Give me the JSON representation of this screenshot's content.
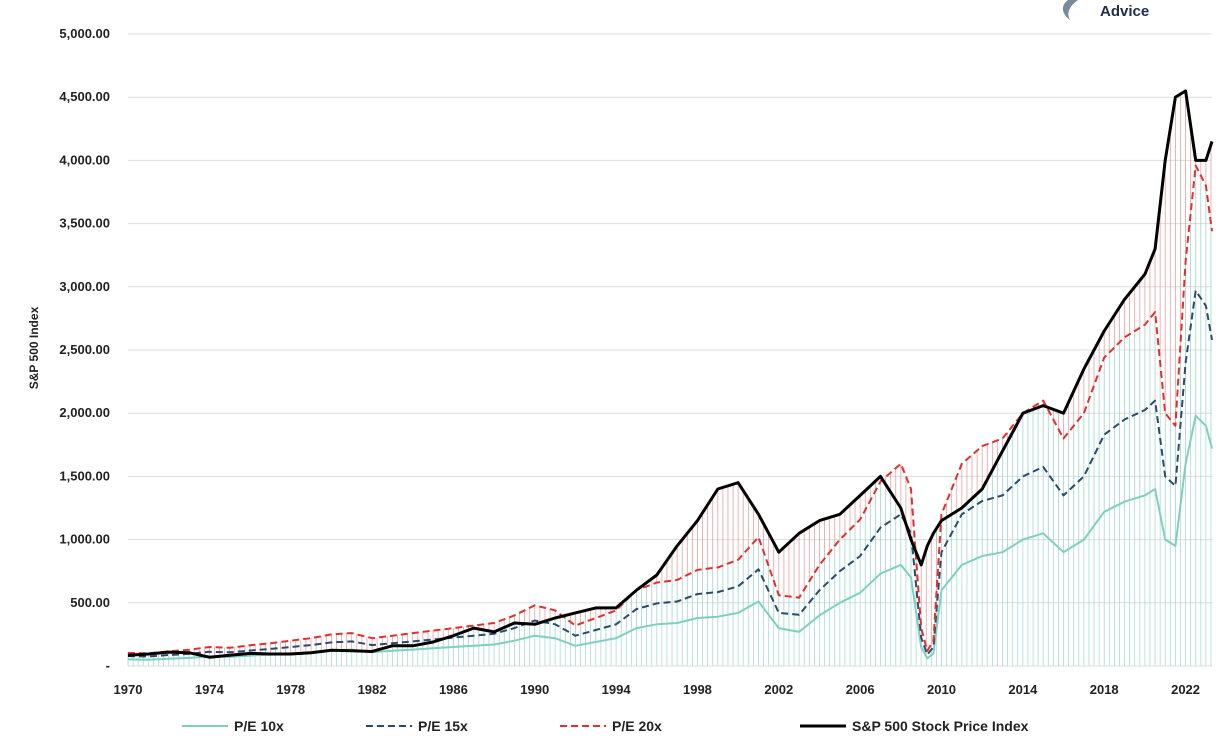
{
  "logo": {
    "text": "Advice"
  },
  "chart_data": {
    "type": "line",
    "title": "",
    "xlabel": "",
    "ylabel": "S&P 500 Index",
    "xlim": [
      1970,
      2023.3
    ],
    "ylim": [
      0,
      5000
    ],
    "y_ticks": [
      0,
      500,
      1000,
      1500,
      2000,
      2500,
      3000,
      3500,
      4000,
      4500,
      5000
    ],
    "y_tick_labels": [
      "-",
      "500.00",
      "1,000.00",
      "1,500.00",
      "2,000.00",
      "2,500.00",
      "3,000.00",
      "3,500.00",
      "4,000.00",
      "4,500.00",
      "5,000.00"
    ],
    "x_ticks": [
      1970,
      1974,
      1978,
      1982,
      1986,
      1990,
      1994,
      1998,
      2002,
      2006,
      2010,
      2014,
      2018,
      2022
    ],
    "x_tick_labels": [
      "1970",
      "1974",
      "1978",
      "1982",
      "1986",
      "1990",
      "1994",
      "1998",
      "2002",
      "2006",
      "2010",
      "2014",
      "2018",
      "2022"
    ],
    "grid": true,
    "legend_position": "bottom",
    "x": [
      1970,
      1971,
      1972,
      1973,
      1974,
      1975,
      1976,
      1977,
      1978,
      1979,
      1980,
      1981,
      1982,
      1983,
      1984,
      1985,
      1986,
      1987,
      1988,
      1989,
      1990,
      1991,
      1992,
      1993,
      1994,
      1995,
      1996,
      1997,
      1998,
      1999,
      2000,
      2001,
      2002,
      2003,
      2004,
      2005,
      2006,
      2007,
      2008,
      2008.5,
      2009,
      2009.3,
      2009.6,
      2010,
      2011,
      2012,
      2013,
      2014,
      2015,
      2016,
      2017,
      2018,
      2019,
      2020,
      2020.5,
      2021,
      2021.5,
      2022,
      2022.5,
      2023,
      2023.3
    ],
    "series": [
      {
        "name": "P/E 10x",
        "color": "#7fcfc1",
        "dash": "",
        "width": 2,
        "values": [
          52,
          50,
          58,
          64,
          75,
          72,
          82,
          90,
          100,
          110,
          125,
          130,
          110,
          120,
          130,
          140,
          150,
          160,
          170,
          200,
          240,
          220,
          160,
          190,
          220,
          300,
          330,
          340,
          380,
          390,
          420,
          510,
          300,
          270,
          400,
          500,
          580,
          730,
          800,
          700,
          150,
          60,
          100,
          600,
          800,
          870,
          900,
          1000,
          1050,
          900,
          1000,
          1220,
          1300,
          1350,
          1400,
          1000,
          950,
          1600,
          1980,
          1900,
          1720
        ]
      },
      {
        "name": "P/E 15x",
        "color": "#2a4a6e",
        "dash": "7,4",
        "width": 2,
        "values": [
          78,
          75,
          87,
          96,
          112,
          108,
          123,
          135,
          150,
          165,
          187,
          195,
          165,
          180,
          195,
          210,
          225,
          240,
          255,
          300,
          360,
          330,
          240,
          285,
          330,
          450,
          495,
          510,
          570,
          585,
          630,
          765,
          420,
          405,
          600,
          750,
          870,
          1095,
          1200,
          1050,
          225,
          90,
          150,
          900,
          1200,
          1305,
          1350,
          1500,
          1575,
          1350,
          1500,
          1830,
          1950,
          2025,
          2100,
          1500,
          1425,
          2400,
          2970,
          2850,
          2580
        ]
      },
      {
        "name": "P/E 20x",
        "color": "#e03030",
        "dash": "7,4",
        "width": 2,
        "values": [
          104,
          100,
          116,
          128,
          150,
          144,
          164,
          180,
          200,
          220,
          250,
          260,
          220,
          240,
          260,
          280,
          300,
          320,
          340,
          400,
          480,
          440,
          320,
          380,
          440,
          600,
          660,
          680,
          760,
          780,
          840,
          1020,
          560,
          540,
          800,
          1000,
          1160,
          1460,
          1600,
          1400,
          300,
          120,
          200,
          1200,
          1600,
          1740,
          1800,
          2000,
          2100,
          1800,
          2000,
          2440,
          2600,
          2700,
          2800,
          2000,
          1900,
          3200,
          3960,
          3800,
          3440
        ]
      },
      {
        "name": "S&P 500 Stock Price Index",
        "color": "#000000",
        "dash": "",
        "width": 3,
        "values": [
          85,
          95,
          110,
          105,
          70,
          85,
          100,
          95,
          95,
          105,
          125,
          120,
          115,
          160,
          160,
          190,
          240,
          300,
          270,
          340,
          330,
          380,
          420,
          460,
          460,
          600,
          720,
          950,
          1150,
          1400,
          1450,
          1200,
          900,
          1050,
          1150,
          1200,
          1350,
          1500,
          1250,
          1000,
          800,
          950,
          1050,
          1150,
          1250,
          1400,
          1700,
          2000,
          2060,
          2000,
          2350,
          2650,
          2900,
          3100,
          3300,
          4000,
          4500,
          4550,
          4000,
          4000,
          4150
        ]
      }
    ]
  }
}
